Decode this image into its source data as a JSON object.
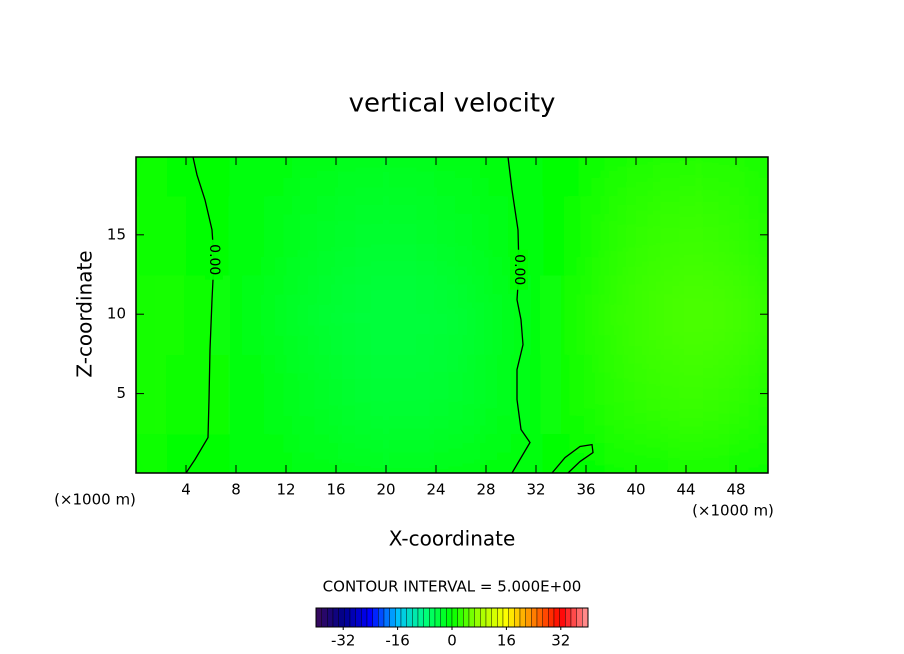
{
  "chart_data": {
    "type": "contour",
    "title": "vertical velocity",
    "xlabel": "X-coordinate",
    "ylabel": "Z-coordinate",
    "x_unit_labels": [
      "(×1000 m)",
      "(×1000 m)"
    ],
    "note": "CONTOUR INTERVAL = 5.000E+00",
    "xlim": [
      0,
      50.56
    ],
    "ylim": [
      0,
      19.9
    ],
    "xticks": [
      4,
      8,
      12,
      16,
      20,
      24,
      28,
      32,
      36,
      40,
      44,
      48
    ],
    "yticks": [
      5,
      10,
      15
    ],
    "x": [
      0,
      5,
      10,
      15,
      20,
      25,
      30,
      35,
      40,
      45,
      50
    ],
    "y": [
      0,
      5,
      10,
      15,
      20
    ],
    "z": [
      [
        0.5,
        0.3,
        -0.5,
        -1.5,
        -2,
        -1.5,
        -0.5,
        -0.2,
        0.5,
        1,
        0.5
      ],
      [
        1,
        0.5,
        -1,
        -2.5,
        -3.5,
        -3,
        -1.5,
        0.5,
        2.5,
        3,
        2
      ],
      [
        1.5,
        0.5,
        -1.5,
        -3,
        -4,
        -3.5,
        -1.5,
        0.5,
        3,
        4,
        3
      ],
      [
        1,
        0.3,
        -1,
        -2.5,
        -3,
        -2.5,
        -1,
        0.3,
        2.5,
        3,
        2
      ],
      [
        0.5,
        0.2,
        -0.5,
        -1.5,
        -2,
        -1.5,
        -0.5,
        0.2,
        1.5,
        2,
        1.5
      ]
    ],
    "contours": [
      {
        "level": 0,
        "label": "0.00",
        "x": [
          4.56,
          4.88,
          5.52,
          6.08,
          6.24,
          6.08,
          5.92,
          5.84,
          5.76,
          4.72,
          4.0
        ],
        "y": [
          19.9,
          18.77,
          17.2,
          15.31,
          13.43,
          10.91,
          7.77,
          4.62,
          2.23,
          0.85,
          0
        ]
      },
      {
        "level": 0,
        "label": "0.00",
        "x": [
          29.76,
          30.08,
          30.56,
          30.64,
          30.48,
          30.8,
          30.96,
          30.48,
          30.48,
          30.8,
          31.52,
          30.08
        ],
        "y": [
          19.9,
          17.83,
          15.31,
          12.8,
          10.91,
          9.65,
          8.08,
          6.51,
          4.62,
          2.74,
          1.92,
          0
        ]
      },
      {
        "level": 0,
        "x": [
          33.28,
          34.32,
          35.52,
          36.48,
          36.56,
          35.52,
          34.56
        ],
        "y": [
          0,
          0.97,
          1.67,
          1.79,
          1.29,
          0.72,
          0
        ]
      }
    ],
    "colormap": [
      "#3a0a5a",
      "#00008b",
      "#0000ff",
      "#00c0ff",
      "#00ff80",
      "#00ff00",
      "#a0ff00",
      "#ffff00",
      "#ff8000",
      "#ff0000",
      "#ff9a9a"
    ],
    "colorbar": {
      "lim": [
        -40,
        40
      ],
      "ticks": [
        -32,
        -16,
        0,
        16,
        32
      ]
    }
  }
}
